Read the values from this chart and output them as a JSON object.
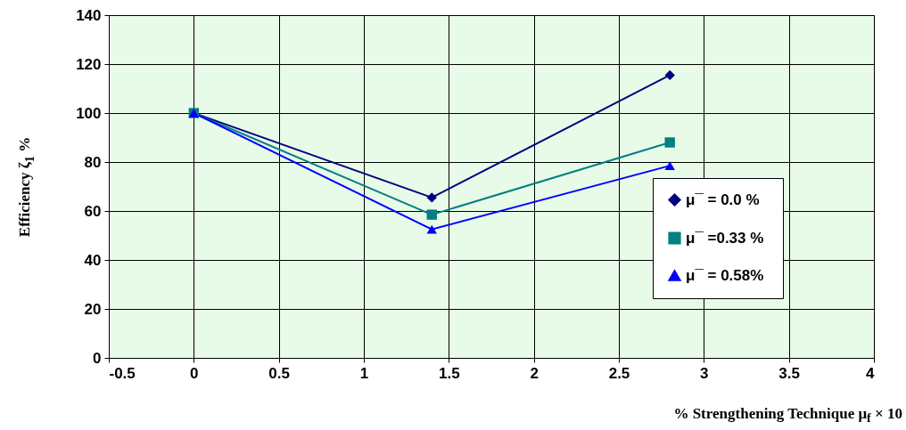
{
  "chart_data": {
    "type": "line",
    "xlabel": "%  Strengthening Technique  μ$_{f}$ × 10",
    "ylabel": "Efficiency ζ$_{1}$ %",
    "x": [
      0,
      1.4,
      2.8
    ],
    "series": [
      {
        "name": "μ¯  = 0.0 %",
        "color": "#000080",
        "marker": "diamond",
        "values": [
          100,
          65.5,
          115.5
        ]
      },
      {
        "name": "μ¯  =0.33 %",
        "color": "#008080",
        "marker": "square",
        "values": [
          100,
          58.5,
          88
        ]
      },
      {
        "name": "μ¯  = 0.58%",
        "color": "#0000ff",
        "marker": "triangle",
        "values": [
          100,
          52.5,
          78.5
        ]
      }
    ],
    "xlim": [
      -0.5,
      4
    ],
    "xticks": [
      -0.5,
      0,
      0.5,
      1,
      1.5,
      2,
      2.5,
      3,
      3.5,
      4
    ],
    "ylim": [
      0,
      140
    ],
    "yticks": [
      0,
      20,
      40,
      60,
      80,
      100,
      120,
      140
    ],
    "grid": true,
    "legend": "right",
    "line_style": "solid"
  }
}
